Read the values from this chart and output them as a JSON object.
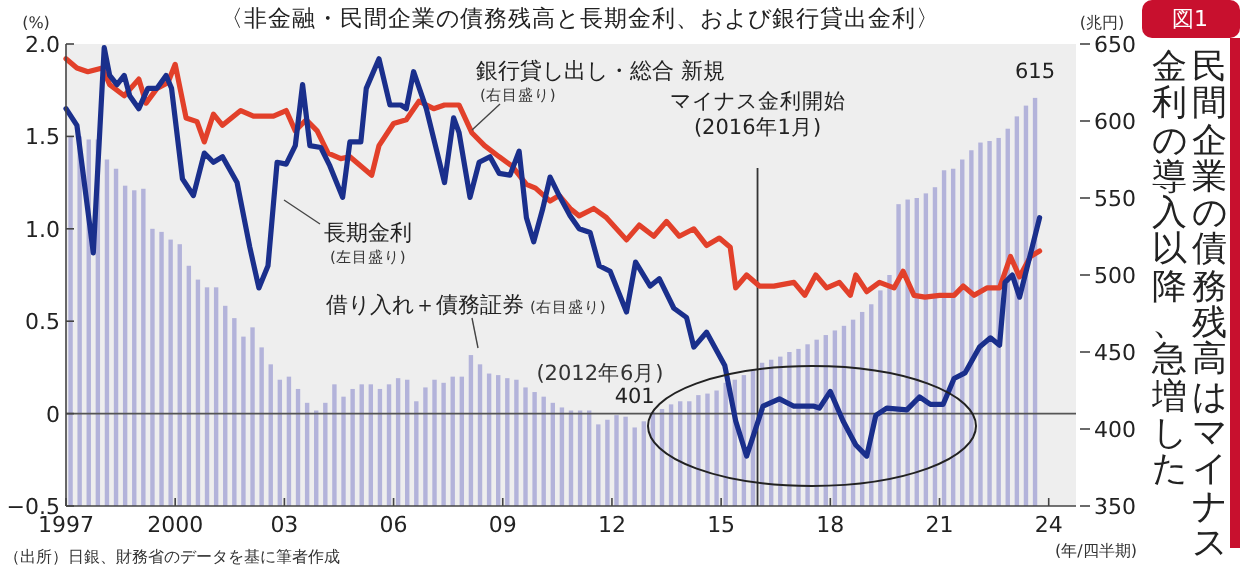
{
  "chart_data": {
    "type": "line",
    "title": "〈非金融・民間企業の債務残高と長期金利、および銀行貸出金利〉",
    "subtitle": "民間企業の債務残高はマイナス金利の導入以降、急増した",
    "ylabel": "(%)",
    "y2label": "(兆円)",
    "xlabel": "(年/四半期)",
    "xlim": [
      1997,
      2024.75
    ],
    "ylim": [
      -0.5,
      2.0
    ],
    "y2lim": [
      350,
      650
    ],
    "xticks": [
      1997,
      2000,
      {
        "value": 2003,
        "label": "03"
      },
      {
        "value": 2006,
        "label": "06"
      },
      {
        "value": 2009,
        "label": "09"
      },
      {
        "value": 2012,
        "label": "12"
      },
      {
        "value": 2015,
        "label": "15"
      },
      {
        "value": 2018,
        "label": "18"
      },
      {
        "value": 2021,
        "label": "21"
      },
      {
        "value": 2024,
        "label": "24"
      }
    ],
    "yticks": [
      {
        "value": -0.5,
        "label": "−0.5"
      },
      0,
      0.5,
      {
        "value": 1.0,
        "label": "1.0"
      },
      1.5,
      {
        "value": 2.0,
        "label": "2.0"
      }
    ],
    "y2ticks": [
      350,
      400,
      450,
      500,
      550,
      600,
      650
    ],
    "series": [
      {
        "name": "借り入れ＋債務証券",
        "type": "bar",
        "axis": "y2",
        "color": "#b3b3da",
        "x": [
          1997.125,
          1997.375,
          1997.625,
          1997.875,
          1998.125,
          1998.375,
          1998.625,
          1998.875,
          1999.125,
          1999.375,
          1999.625,
          1999.875,
          2000.125,
          2000.375,
          2000.625,
          2000.875,
          2001.125,
          2001.375,
          2001.625,
          2001.875,
          2002.125,
          2002.375,
          2002.625,
          2002.875,
          2003.125,
          2003.375,
          2003.625,
          2003.875,
          2004.125,
          2004.375,
          2004.625,
          2004.875,
          2005.125,
          2005.375,
          2005.625,
          2005.875,
          2006.125,
          2006.375,
          2006.625,
          2006.875,
          2007.125,
          2007.375,
          2007.625,
          2007.875,
          2008.125,
          2008.375,
          2008.625,
          2008.875,
          2009.125,
          2009.375,
          2009.625,
          2009.875,
          2010.125,
          2010.375,
          2010.625,
          2010.875,
          2011.125,
          2011.375,
          2011.625,
          2011.875,
          2012.125,
          2012.375,
          2012.625,
          2012.875,
          2013.125,
          2013.375,
          2013.625,
          2013.875,
          2014.125,
          2014.375,
          2014.625,
          2014.875,
          2015.125,
          2015.375,
          2015.625,
          2015.875,
          2016.125,
          2016.375,
          2016.625,
          2016.875,
          2017.125,
          2017.375,
          2017.625,
          2017.875,
          2018.125,
          2018.375,
          2018.625,
          2018.875,
          2019.125,
          2019.375,
          2019.625,
          2019.875,
          2020.125,
          2020.375,
          2020.625,
          2020.875,
          2021.125,
          2021.375,
          2021.625,
          2021.875,
          2022.125,
          2022.375,
          2022.625,
          2022.875,
          2023.125,
          2023.375,
          2023.625
        ],
        "values": [
          590,
          590,
          588,
          588,
          575,
          569,
          558,
          555,
          556,
          530,
          528,
          523,
          520,
          506,
          497,
          492,
          492,
          480,
          472,
          460,
          466,
          453,
          442,
          432,
          434,
          426,
          417,
          412,
          417,
          429,
          421,
          426,
          429,
          429,
          426,
          429,
          433,
          432,
          418,
          427,
          432,
          430,
          434,
          434,
          448,
          442,
          436,
          435,
          433,
          432,
          427,
          424,
          421,
          417,
          414,
          412,
          412,
          412,
          403,
          406,
          409,
          408,
          401,
          405,
          411,
          413,
          416,
          418,
          418,
          422,
          423,
          425,
          430,
          432,
          435,
          438,
          443,
          445,
          447,
          450,
          452,
          455,
          458,
          461,
          464,
          467,
          471,
          476,
          481,
          490,
          500,
          546,
          549,
          550,
          553,
          557,
          568,
          569,
          575,
          581,
          586,
          587,
          589,
          595,
          603,
          610,
          615
        ],
        "value_labels": [
          null,
          null,
          null,
          null,
          null,
          null,
          null,
          null,
          null,
          null,
          null,
          null,
          null,
          null,
          null,
          null,
          null,
          null,
          null,
          null,
          null,
          null,
          null,
          null,
          null,
          null,
          null,
          null,
          null,
          null,
          null,
          null,
          null,
          null,
          null,
          null,
          null,
          null,
          null,
          null,
          null,
          null,
          null,
          null,
          null,
          null,
          null,
          null,
          null,
          null,
          null,
          null,
          null,
          null,
          null,
          null,
          null,
          null,
          null,
          null,
          null,
          null,
          "401",
          null,
          null,
          null,
          null,
          null,
          null,
          null,
          null,
          null,
          null,
          null,
          null,
          null,
          null,
          null,
          null,
          null,
          null,
          null,
          null,
          null,
          null,
          null,
          null,
          null,
          null,
          null,
          null,
          null,
          null,
          null,
          null,
          null,
          null,
          null,
          null,
          null,
          null,
          null,
          null,
          null,
          null,
          null,
          "615"
        ]
      },
      {
        "name": "銀行貸し出し・総合 新規",
        "color": "#e2402a",
        "x": [
          1997.0,
          1997.3,
          1997.6,
          1998.0,
          1998.2,
          1998.6,
          1999.0,
          1999.2,
          1999.5,
          1999.8,
          2000.0,
          2000.3,
          2000.6,
          2000.8,
          2001.05,
          2001.3,
          2001.8,
          2002.15,
          2002.7,
          2003.05,
          2003.3,
          2003.6,
          2003.9,
          2004.2,
          2004.55,
          2004.8,
          2005.4,
          2005.6,
          2006.0,
          2006.35,
          2006.7,
          2007.1,
          2007.4,
          2007.8,
          2008.15,
          2008.5,
          2008.9,
          2009.25,
          2009.65,
          2009.9,
          2010.3,
          2010.55,
          2010.85,
          2011.1,
          2011.5,
          2011.85,
          2012.4,
          2012.75,
          2013.15,
          2013.5,
          2013.85,
          2014.25,
          2014.6,
          2014.95,
          2015.25,
          2015.4,
          2015.7,
          2016.05,
          2016.45,
          2017.0,
          2017.3,
          2017.6,
          2017.9,
          2018.25,
          2018.55,
          2018.7,
          2019.0,
          2019.35,
          2019.75,
          2020.0,
          2020.3,
          2020.6,
          2021.0,
          2021.4,
          2021.65,
          2021.95,
          2022.3,
          2022.65,
          2022.95,
          2023.2,
          2023.5,
          2023.75
        ],
        "values": [
          1.92,
          1.87,
          1.85,
          1.87,
          1.78,
          1.72,
          1.81,
          1.68,
          1.76,
          1.79,
          1.89,
          1.6,
          1.58,
          1.47,
          1.62,
          1.56,
          1.64,
          1.61,
          1.61,
          1.64,
          1.53,
          1.59,
          1.53,
          1.41,
          1.38,
          1.39,
          1.29,
          1.45,
          1.57,
          1.59,
          1.69,
          1.65,
          1.67,
          1.67,
          1.52,
          1.45,
          1.39,
          1.34,
          1.24,
          1.22,
          1.15,
          1.18,
          1.11,
          1.07,
          1.11,
          1.06,
          0.94,
          1.02,
          0.96,
          1.04,
          0.96,
          1.0,
          0.91,
          0.95,
          0.9,
          0.68,
          0.75,
          0.69,
          0.69,
          0.71,
          0.64,
          0.75,
          0.68,
          0.71,
          0.64,
          0.75,
          0.66,
          0.71,
          0.68,
          0.77,
          0.64,
          0.63,
          0.64,
          0.64,
          0.69,
          0.64,
          0.68,
          0.68,
          0.85,
          0.74,
          0.85,
          0.88
        ]
      },
      {
        "name": "長期金利",
        "color": "#1a2f8c",
        "x": [
          1997.0,
          1997.3,
          1997.75,
          1998.05,
          1998.2,
          1998.4,
          1998.6,
          1998.75,
          1999.0,
          1999.25,
          1999.5,
          1999.75,
          1999.9,
          2000.2,
          2000.5,
          2000.8,
          2001.05,
          2001.3,
          2001.7,
          2002.05,
          2002.3,
          2002.55,
          2002.8,
          2003.05,
          2003.3,
          2003.5,
          2003.7,
          2004.0,
          2004.25,
          2004.6,
          2004.8,
          2005.1,
          2005.25,
          2005.6,
          2005.9,
          2006.2,
          2006.35,
          2006.55,
          2006.9,
          2007.4,
          2007.65,
          2007.8,
          2008.1,
          2008.35,
          2008.65,
          2008.9,
          2009.2,
          2009.45,
          2009.65,
          2009.85,
          2010.1,
          2010.3,
          2010.55,
          2010.85,
          2011.1,
          2011.4,
          2011.65,
          2011.95,
          2012.4,
          2012.65,
          2013.05,
          2013.3,
          2013.7,
          2014.05,
          2014.25,
          2014.6,
          2015.1,
          2015.4,
          2015.7,
          2016.15,
          2016.6,
          2017.0,
          2017.55,
          2017.7,
          2018.0,
          2018.35,
          2018.7,
          2019.0,
          2019.25,
          2019.55,
          2020.1,
          2020.45,
          2020.75,
          2021.1,
          2021.4,
          2021.7,
          2022.1,
          2022.4,
          2022.65,
          2022.8,
          2023.0,
          2023.2,
          2023.75
        ],
        "values": [
          1.65,
          1.56,
          0.87,
          1.98,
          1.83,
          1.78,
          1.83,
          1.72,
          1.65,
          1.76,
          1.76,
          1.83,
          1.76,
          1.27,
          1.18,
          1.41,
          1.36,
          1.39,
          1.25,
          0.9,
          0.68,
          0.8,
          1.36,
          1.35,
          1.45,
          1.78,
          1.45,
          1.44,
          1.34,
          1.17,
          1.47,
          1.47,
          1.76,
          1.92,
          1.67,
          1.67,
          1.65,
          1.85,
          1.65,
          1.25,
          1.6,
          1.52,
          1.17,
          1.36,
          1.39,
          1.3,
          1.29,
          1.42,
          1.06,
          0.93,
          1.11,
          1.28,
          1.18,
          1.07,
          1.0,
          0.98,
          0.8,
          0.77,
          0.55,
          0.82,
          0.69,
          0.73,
          0.57,
          0.52,
          0.36,
          0.44,
          0.26,
          -0.04,
          -0.23,
          0.04,
          0.08,
          0.04,
          0.04,
          0.03,
          0.12,
          -0.04,
          -0.17,
          -0.23,
          -0.01,
          0.03,
          0.02,
          0.09,
          0.05,
          0.05,
          0.19,
          0.22,
          0.36,
          0.41,
          0.37,
          0.71,
          0.75,
          0.63,
          1.06
        ]
      }
    ],
    "ref_lines": [
      {
        "axis": "y",
        "value": 0,
        "color": "#555555"
      },
      {
        "axis": "x",
        "value": 2016.0,
        "label": "マイナス金利開始\n(2016年1月)",
        "color": "#333333"
      }
    ],
    "annotations": [
      "(右目盛り)",
      "(右目盛り)",
      "(左目盛り)",
      "(2012年6月)",
      "図1",
      "（出所）日銀、財務省のデータを基に筆者作成"
    ]
  }
}
